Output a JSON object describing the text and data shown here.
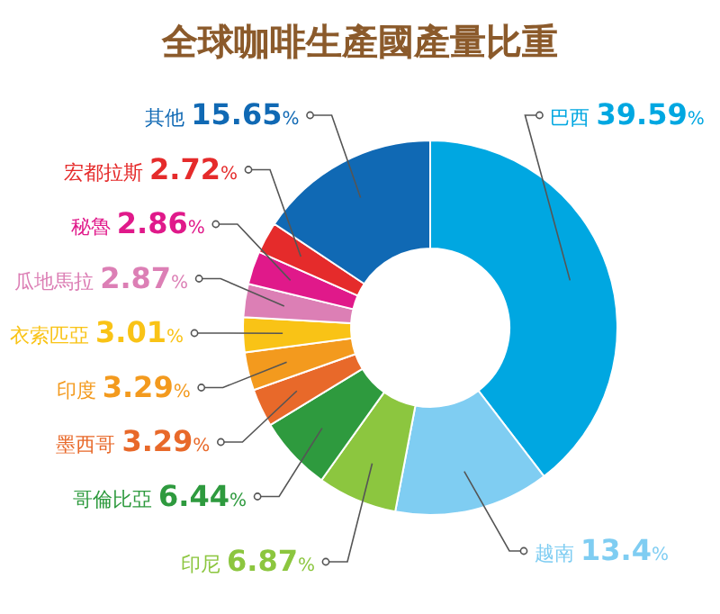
{
  "chart_data": {
    "type": "donut",
    "title": "全球咖啡生產國產量比重",
    "categories": [
      "巴西",
      "越南",
      "印尼",
      "哥倫比亞",
      "墨西哥",
      "印度",
      "衣索匹亞",
      "瓜地馬拉",
      "秘魯",
      "宏都拉斯",
      "其他"
    ],
    "values": [
      39.59,
      13.4,
      6.87,
      6.44,
      3.29,
      3.29,
      3.01,
      2.87,
      2.86,
      2.72,
      15.65
    ],
    "colors": [
      "#00a7e1",
      "#7fcdf2",
      "#8cc63f",
      "#2e9a3e",
      "#e8692a",
      "#f39a1e",
      "#f9c316",
      "#dc7fb5",
      "#e0198a",
      "#e52b2b",
      "#1069b4"
    ],
    "value_labels": [
      "39.59%",
      "13.4%",
      "6.87%",
      "6.44%",
      "3.29%",
      "3.29%",
      "3.01%",
      "2.87%",
      "2.86%",
      "2.72%",
      "15.65%"
    ],
    "legend": false
  }
}
